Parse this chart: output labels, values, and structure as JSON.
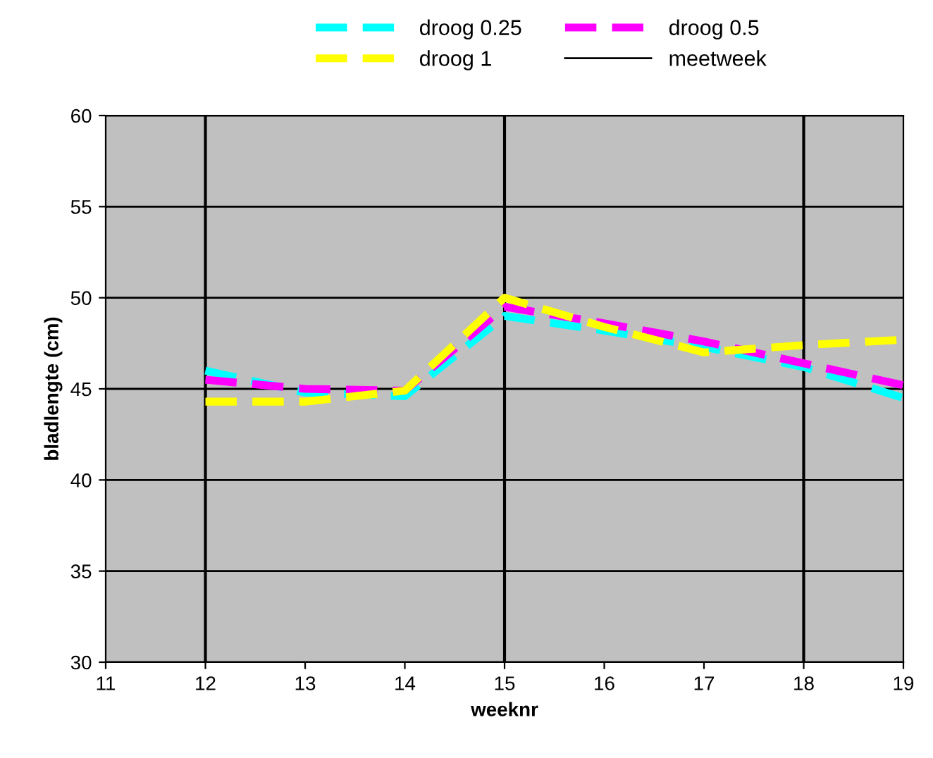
{
  "chart_data": {
    "type": "line",
    "xlabel": "weeknr",
    "ylabel": "bladlengte (cm)",
    "x": [
      12,
      13,
      14,
      15,
      16,
      17,
      18,
      19
    ],
    "series": [
      {
        "name": "droog 0.25",
        "color": "#00ffff",
        "values": [
          46.0,
          44.8,
          44.6,
          49.0,
          48.2,
          47.3,
          46.2,
          44.5
        ]
      },
      {
        "name": "droog 0.5",
        "color": "#ff00ff",
        "values": [
          45.5,
          45.0,
          44.9,
          49.5,
          48.6,
          47.6,
          46.4,
          45.2
        ]
      },
      {
        "name": "droog 1",
        "color": "#ffff00",
        "values": [
          44.3,
          44.3,
          44.9,
          50.0,
          48.4,
          47.0,
          47.4,
          47.7
        ]
      }
    ],
    "ref_lines": [
      {
        "axis": "x",
        "value": 12,
        "label": "meetweek",
        "color": "#000000"
      },
      {
        "axis": "x",
        "value": 15,
        "label": null,
        "color": "#000000"
      },
      {
        "axis": "x",
        "value": 18,
        "label": null,
        "color": "#000000"
      }
    ],
    "xlim": [
      11,
      19
    ],
    "xticks": [
      11,
      12,
      13,
      14,
      15,
      16,
      17,
      18,
      19
    ],
    "ylim": [
      30,
      60
    ],
    "yticks": [
      30,
      35,
      40,
      45,
      50,
      55,
      60
    ],
    "grid": "y",
    "legend": "top",
    "line_style": "dashed",
    "marker": "none"
  }
}
